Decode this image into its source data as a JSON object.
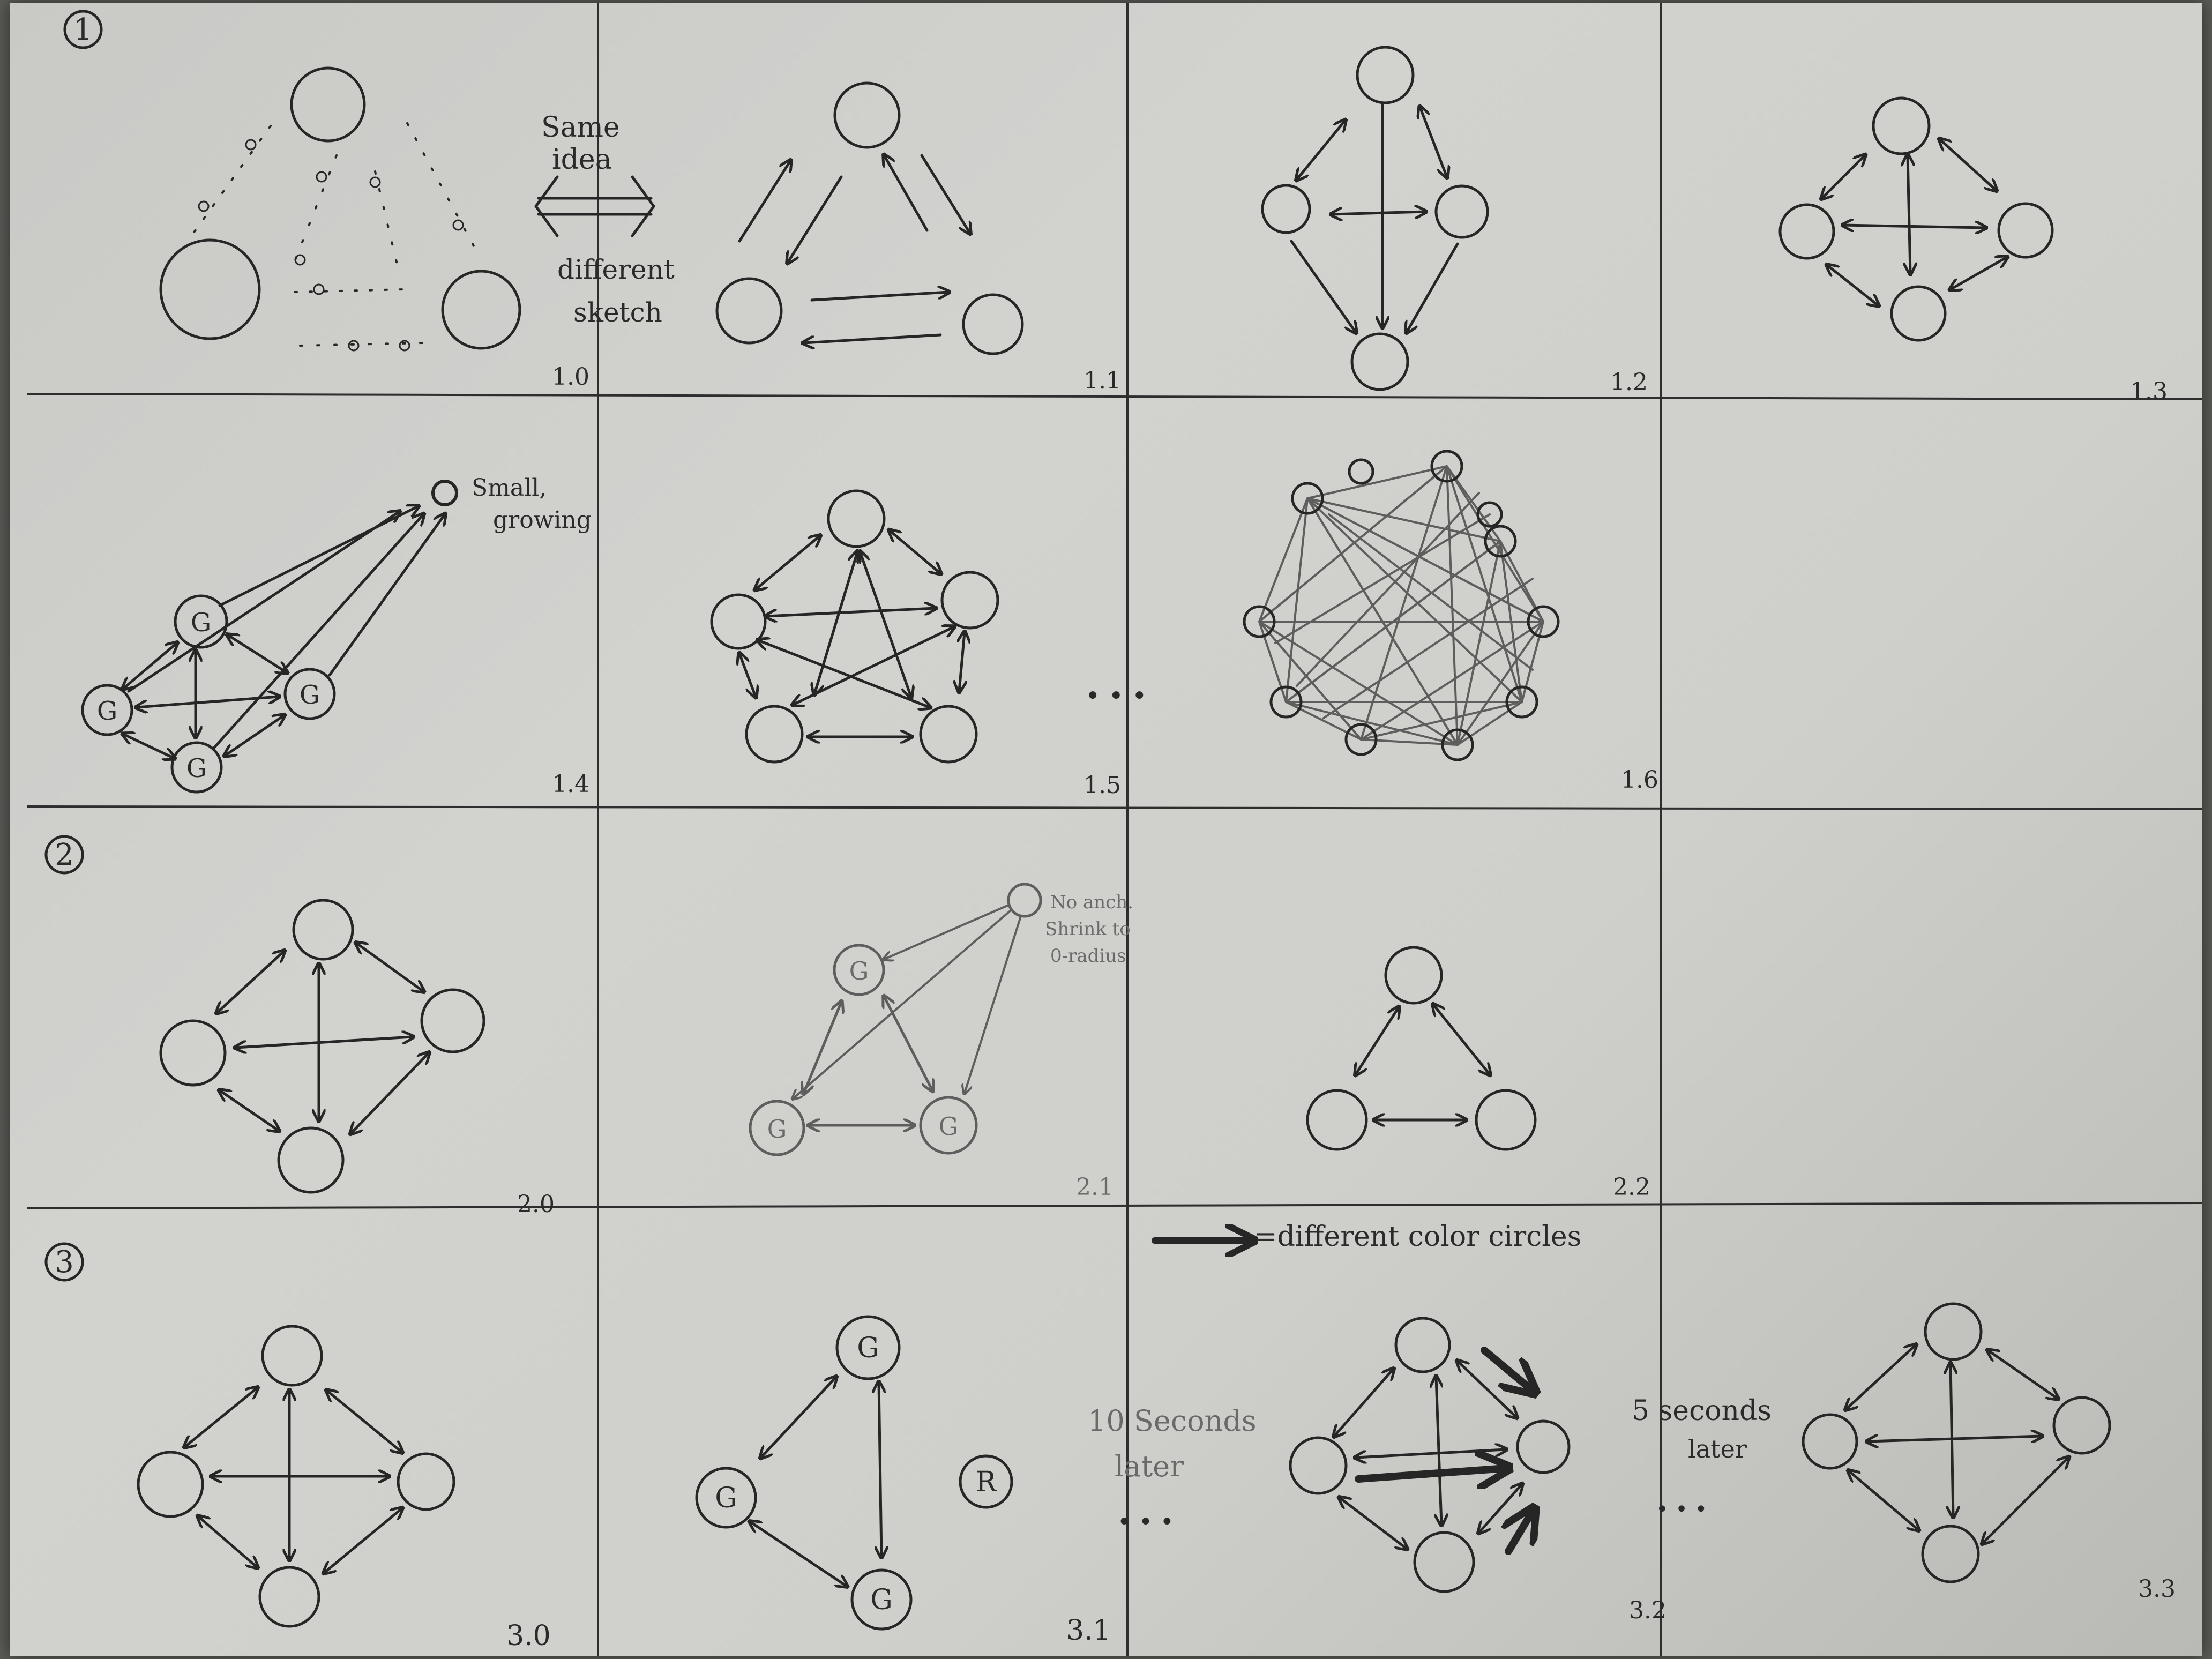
{
  "sections": [
    {
      "label": "1"
    },
    {
      "label": "2"
    },
    {
      "label": "3"
    }
  ],
  "frames": [
    {
      "id": "f10",
      "label": "1.0",
      "section": 1
    },
    {
      "id": "f11",
      "label": "1.1",
      "section": 1
    },
    {
      "id": "f12",
      "label": "1.2",
      "section": 1
    },
    {
      "id": "f13",
      "label": "1.3",
      "section": 1
    },
    {
      "id": "f14",
      "label": "1.4",
      "section": 1
    },
    {
      "id": "f15",
      "label": "1.5",
      "section": 1
    },
    {
      "id": "f16",
      "label": "1.6",
      "section": 1
    },
    {
      "id": "f17",
      "label": "",
      "section": 1
    },
    {
      "id": "f20",
      "label": "2.0",
      "section": 2
    },
    {
      "id": "f21",
      "label": "2.1",
      "section": 2
    },
    {
      "id": "f22",
      "label": "2.2",
      "section": 2
    },
    {
      "id": "f23",
      "label": "",
      "section": 2
    },
    {
      "id": "f30",
      "label": "3.0",
      "section": 3
    },
    {
      "id": "f31",
      "label": "3.1",
      "section": 3
    },
    {
      "id": "f32",
      "label": "3.2",
      "section": 3
    },
    {
      "id": "f33",
      "label": "3.3",
      "section": 3
    }
  ],
  "annotations": {
    "same_idea": [
      "Same",
      "idea"
    ],
    "different_sketch": [
      "different",
      "sketch"
    ],
    "small_growing": [
      "Small,",
      "growing"
    ],
    "ellipsis_1": "• • •",
    "no_anchor": [
      "No anch.",
      "Shrink to",
      "0-radius"
    ],
    "legend": "=different color circles",
    "ten_seconds": [
      "10 Seconds",
      "later"
    ],
    "ellipsis_3": "• • •",
    "five_seconds": [
      "5 seconds",
      "later"
    ],
    "ellipsis_4": "• • •"
  },
  "node_labels": {
    "g": "G",
    "r": "R"
  },
  "colors": {
    "paper": "#cfcfcb",
    "ink": "#262626",
    "pencil": "#5e5e5e",
    "backdrop": "#5a5a56"
  }
}
